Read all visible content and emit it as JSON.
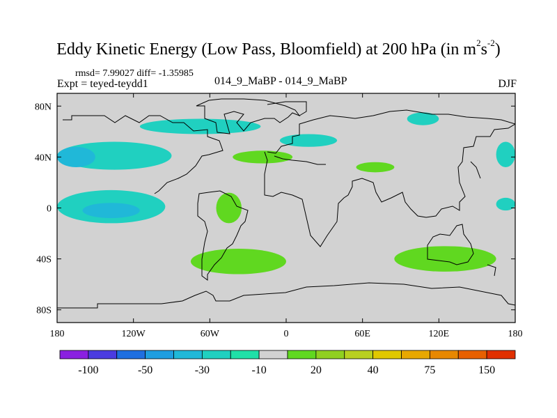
{
  "header": {
    "title_main": "Eddy Kinetic Energy (Low Pass, Bloomfield) at 200 hPa (in m",
    "title_sup1": "2",
    "title_mid": "s",
    "title_sup2": "-2",
    "title_end": ")",
    "stats": "rmsd= 7.99027 diff= -1.35985",
    "expt": "Expt = teyed-teydd1",
    "case": "014_9_MaBP - 014_9_MaBP",
    "season": "DJF"
  },
  "chart_data": {
    "type": "heatmap",
    "title": "Eddy Kinetic Energy (Low Pass, Bloomfield) at 200 hPa (in m^2 s^-2)",
    "projection": "cylindrical equidistant",
    "x_range": [
      -180,
      180
    ],
    "y_range": [
      -90,
      90
    ],
    "x_ticks": [
      {
        "value": -180,
        "label": "180"
      },
      {
        "value": -120,
        "label": "120W"
      },
      {
        "value": -60,
        "label": "60W"
      },
      {
        "value": 0,
        "label": "0"
      },
      {
        "value": 60,
        "label": "60E"
      },
      {
        "value": 120,
        "label": "120E"
      },
      {
        "value": 180,
        "label": "180"
      }
    ],
    "y_ticks": [
      {
        "value": 80,
        "label": "80N"
      },
      {
        "value": 40,
        "label": "40N"
      },
      {
        "value": 0,
        "label": "0"
      },
      {
        "value": -40,
        "label": "40S"
      },
      {
        "value": -80,
        "label": "80S"
      }
    ],
    "background_color": "#d2d2d2",
    "colorbar": {
      "colors": [
        "#8a20e0",
        "#4b3ce0",
        "#1f6fe0",
        "#1f9ee0",
        "#20b8d8",
        "#20d0c0",
        "#20e0a8",
        "#d2d2d2",
        "#60d820",
        "#90d020",
        "#b8d020",
        "#e0c800",
        "#e8a800",
        "#e88800",
        "#e86000",
        "#e03000"
      ],
      "labels": [
        {
          "boundary": 1,
          "text": "-100"
        },
        {
          "boundary": 3,
          "text": "-50"
        },
        {
          "boundary": 5,
          "text": "-30"
        },
        {
          "boundary": 7,
          "text": "-10"
        },
        {
          "boundary": 9,
          "text": "20"
        },
        {
          "boundary": 11,
          "text": "40"
        },
        {
          "boundary": 13,
          "text": "75"
        },
        {
          "boundary": 15,
          "text": "150"
        }
      ]
    },
    "regions": [
      {
        "name": "north-pacific-negative",
        "value": -10,
        "lon": [
          -180,
          -90
        ],
        "lat": [
          30,
          52
        ],
        "color": "#20d0c0"
      },
      {
        "name": "north-pacific-core",
        "value": -20,
        "lon": [
          -180,
          -150
        ],
        "lat": [
          32,
          48
        ],
        "color": "#20b8d8"
      },
      {
        "name": "tropical-pacific-negative",
        "value": -10,
        "lon": [
          -180,
          -95
        ],
        "lat": [
          -12,
          14
        ],
        "color": "#20d0c0"
      },
      {
        "name": "tropical-pacific-core",
        "value": -20,
        "lon": [
          -160,
          -115
        ],
        "lat": [
          -8,
          4
        ],
        "color": "#20b8d8"
      },
      {
        "name": "arctic-canada-negative",
        "value": -10,
        "lon": [
          -115,
          -20
        ],
        "lat": [
          58,
          70
        ],
        "color": "#20d0c0"
      },
      {
        "name": "north-atlantic-negative",
        "value": -10,
        "lon": [
          -5,
          40
        ],
        "lat": [
          48,
          58
        ],
        "color": "#20d0c0"
      },
      {
        "name": "siberia-negative",
        "value": -10,
        "lon": [
          95,
          120
        ],
        "lat": [
          65,
          75
        ],
        "color": "#20d0c0"
      },
      {
        "name": "north-pacific-east-negative",
        "value": -10,
        "lon": [
          165,
          180
        ],
        "lat": [
          32,
          52
        ],
        "color": "#20d0c0"
      },
      {
        "name": "east-pacific-negative",
        "value": -10,
        "lon": [
          165,
          180
        ],
        "lat": [
          -2,
          8
        ],
        "color": "#20d0c0"
      },
      {
        "name": "atlantic-positive",
        "value": 20,
        "lon": [
          -42,
          5
        ],
        "lat": [
          35,
          45
        ],
        "color": "#60d820"
      },
      {
        "name": "asia-positive",
        "value": 20,
        "lon": [
          55,
          85
        ],
        "lat": [
          28,
          36
        ],
        "color": "#60d820"
      },
      {
        "name": "tropical-atlantic-positive",
        "value": 20,
        "lon": [
          -55,
          -35
        ],
        "lat": [
          -12,
          12
        ],
        "color": "#60d820"
      },
      {
        "name": "southern-ocean-positive",
        "value": 20,
        "lon": [
          -75,
          0
        ],
        "lat": [
          -52,
          -32
        ],
        "color": "#60d820"
      },
      {
        "name": "south-indian-positive",
        "value": 20,
        "lon": [
          85,
          165
        ],
        "lat": [
          -50,
          -30
        ],
        "color": "#60d820"
      }
    ]
  }
}
